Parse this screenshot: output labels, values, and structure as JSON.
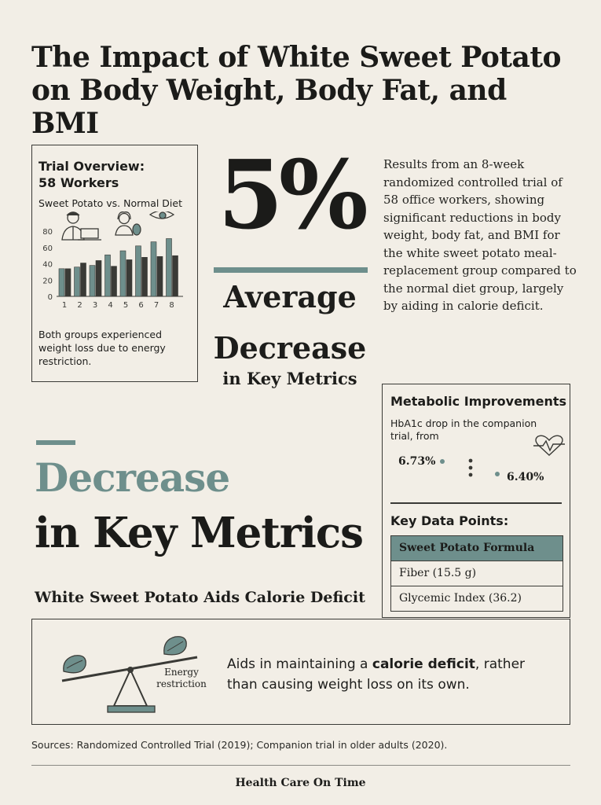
{
  "title": "The Impact of White Sweet Potato on Body Weight, Body Fat, and BMI",
  "trial": {
    "heading_line1": "Trial Overview:",
    "heading_line2": "58 Workers",
    "subtitle": "Sweet Potato vs. Normal Diet",
    "note": "Both groups experienced weight loss due to energy restriction.",
    "chart_data": {
      "type": "bar",
      "categories": [
        "1",
        "2",
        "3",
        "4",
        "5",
        "6",
        "7",
        "8"
      ],
      "yticks": [
        "0",
        "20",
        "40",
        "60",
        "80"
      ],
      "ylim": [
        0,
        85
      ],
      "series": [
        {
          "values": [
            34,
            36,
            38,
            51,
            56,
            62,
            67,
            71
          ]
        },
        {
          "values": [
            34,
            41,
            44,
            37,
            45,
            48,
            49,
            50
          ]
        }
      ],
      "colors": [
        "#6e8f8c",
        "#3a3a36"
      ]
    },
    "icons": [
      "doctor-icon",
      "laptop-icon",
      "woman-icon",
      "sweet-potato-icon",
      "eye-icon"
    ]
  },
  "stat": {
    "value": "5%",
    "line1": "Average",
    "line2": "Decrease",
    "line3": "in Key Metrics"
  },
  "results_text": "Results from an 8-week randomized controlled trial of 58 office workers, showing significant reductions in body weight, body fat, and BMI for  the white sweet potato meal-replacement group compared to the normal diet group, largely by aiding in calorie deficit.",
  "metabolic": {
    "title": "Metabolic Improvements",
    "subtitle": "HbA1c drop in the companion trial, from",
    "from": "6.73%",
    "to": "6.40%",
    "icons": [
      "heart-pulse-icon"
    ]
  },
  "key_points": {
    "title": "Key Data Points:",
    "header": "Sweet Potato Formula",
    "rows": [
      "Fiber (15.5 g)",
      "Glycemic Index (36.2)"
    ]
  },
  "decrease": {
    "line1": "Decrease",
    "line2": "in Key Metrics"
  },
  "aid_title": "White Sweet Potato Aids Calorie Deficit",
  "calorie": {
    "energy_label": "Energy restriction",
    "text_before": "Aids in maintaining a ",
    "text_bold": "calorie deficit",
    "text_after": ", rather than causing weight loss on its own.",
    "icons": [
      "seesaw-icon",
      "sweet-potato-icon"
    ]
  },
  "sources": "Sources: Randomized Controlled Trial (2019); Companion trial in older adults (2020).",
  "footer": "Health Care On Time",
  "colors": {
    "accent": "#6e8f8c",
    "background": "#f2eee6",
    "ink": "#1d1d1b"
  }
}
